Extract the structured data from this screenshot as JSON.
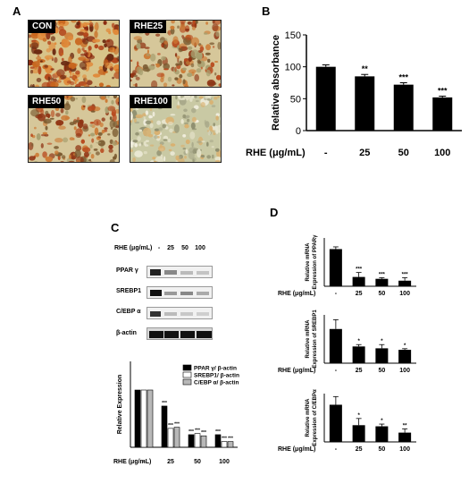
{
  "panelA": {
    "letter": "A",
    "images": [
      {
        "label": "CON",
        "palette": "dense-red"
      },
      {
        "label": "RHE25",
        "palette": "medium-red"
      },
      {
        "label": "RHE50",
        "palette": "medium-red"
      },
      {
        "label": "RHE100",
        "palette": "pale-green"
      }
    ]
  },
  "panelB": {
    "letter": "B",
    "chart_data": {
      "type": "bar",
      "categories": [
        "-",
        "25",
        "50",
        "100"
      ],
      "values": [
        100,
        85,
        72,
        52
      ],
      "errors": [
        3,
        3,
        3,
        2
      ],
      "significance": [
        "",
        "**",
        "***",
        "***"
      ],
      "ylabel": "Relative absorbance",
      "xlabel": "RHE (μg/mL)",
      "ylim": [
        0,
        150
      ],
      "yticks": [
        "0",
        "50",
        "100",
        "150"
      ],
      "bar_color": "#000000"
    }
  },
  "panelC": {
    "letter": "C",
    "blot_header": {
      "label": "RHE (μg/mL)",
      "lanes": [
        "-",
        "25",
        "50",
        "100"
      ]
    },
    "blots": [
      "PPAR γ",
      "SREBP1",
      "C/EBP α",
      "β-actin"
    ],
    "chart_data": {
      "type": "bar",
      "categories": [
        "-",
        "25",
        "50",
        "100"
      ],
      "series": [
        {
          "name": "PPAR γ/ β-actin",
          "values": [
            1.0,
            0.72,
            0.22,
            0.22
          ],
          "color": "#000000"
        },
        {
          "name": "SREBP1/ β-actin",
          "values": [
            1.0,
            0.33,
            0.24,
            0.1
          ],
          "color": "#ffffff"
        },
        {
          "name": "C/EBP α/ β-actin",
          "values": [
            1.0,
            0.35,
            0.2,
            0.1
          ],
          "color": "#b8b8b8"
        }
      ],
      "significance": [
        [
          "",
          "",
          ""
        ],
        [
          "***",
          "***",
          "***"
        ],
        [
          "***",
          "***",
          "***"
        ],
        [
          "***",
          "***",
          "***"
        ]
      ],
      "ylabel": "Relative Expression",
      "xlabel": "RHE (μg/mL)",
      "ylim": [
        0,
        1.5
      ]
    }
  },
  "panelD": {
    "letter": "D",
    "xlabel": "RHE (μg/mL)",
    "categories": [
      "-",
      "25",
      "50",
      "100"
    ],
    "charts": [
      {
        "ylabel1": "Relative mRNA",
        "ylabel2": "Expression of PPARγ",
        "values": [
          1.0,
          0.25,
          0.2,
          0.15
        ],
        "errors": [
          0.06,
          0.12,
          0.03,
          0.08
        ],
        "significance": [
          "",
          "***",
          "***",
          "***"
        ],
        "ylim": [
          0,
          1.3
        ]
      },
      {
        "ylabel1": "Relative mRNA",
        "ylabel2": "Expression of SREBP1",
        "values": [
          0.92,
          0.45,
          0.4,
          0.36
        ],
        "errors": [
          0.25,
          0.05,
          0.1,
          0.03
        ],
        "significance": [
          "",
          "*",
          "*",
          "*"
        ],
        "ylim": [
          0,
          1.3
        ]
      },
      {
        "ylabel1": "Relative mRNA",
        "ylabel2": "Expression of C/EBPα",
        "values": [
          1.0,
          0.45,
          0.42,
          0.25
        ],
        "errors": [
          0.22,
          0.18,
          0.06,
          0.1
        ],
        "significance": [
          "",
          "*",
          "*",
          "**"
        ],
        "ylim": [
          0,
          1.3
        ]
      }
    ]
  }
}
